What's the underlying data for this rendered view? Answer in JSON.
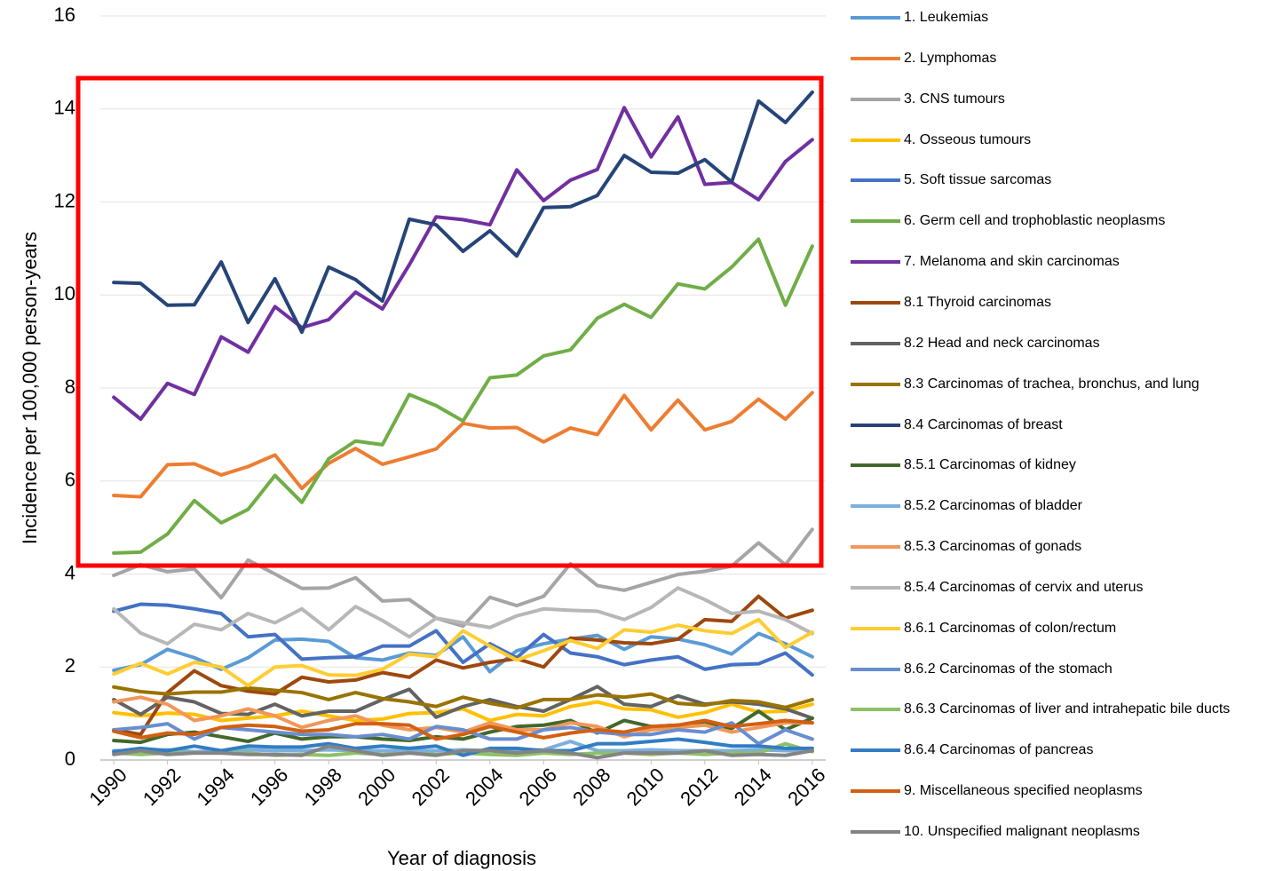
{
  "chart_data": {
    "type": "line",
    "x_label": "Year of diagnosis",
    "y_label": "Incidence per 100,000 person-years",
    "x": [
      1990,
      1991,
      1992,
      1993,
      1994,
      1995,
      1996,
      1997,
      1998,
      1999,
      2000,
      2001,
      2002,
      2003,
      2004,
      2005,
      2006,
      2007,
      2008,
      2009,
      2010,
      2011,
      2012,
      2013,
      2014,
      2015,
      2016
    ],
    "xlim": [
      1989.5,
      2016.5
    ],
    "xticks": [
      1990,
      1992,
      1994,
      1996,
      1998,
      2000,
      2002,
      2004,
      2006,
      2008,
      2010,
      2012,
      2014,
      2016
    ],
    "ylim": [
      0,
      16
    ],
    "yticks": [
      0,
      2,
      4,
      6,
      8,
      10,
      12,
      14,
      16
    ],
    "grid": true,
    "legend": "right",
    "series": [
      {
        "name": "1. Leukemias",
        "color": "#5b9bd5",
        "values": [
          1.93,
          2.05,
          2.38,
          2.2,
          1.95,
          2.2,
          2.58,
          2.6,
          2.55,
          2.2,
          2.15,
          2.3,
          2.25,
          2.65,
          1.9,
          2.35,
          2.5,
          2.6,
          2.68,
          2.38,
          2.65,
          2.6,
          2.48,
          2.28,
          2.72,
          2.5,
          2.22
        ]
      },
      {
        "name": "2. Lymphomas",
        "color": "#ed7d31",
        "values": [
          5.69,
          5.66,
          6.35,
          6.37,
          6.13,
          6.31,
          6.56,
          5.84,
          6.38,
          6.7,
          6.36,
          6.52,
          6.69,
          7.24,
          7.14,
          7.15,
          6.84,
          7.14,
          7.0,
          7.84,
          7.1,
          7.74,
          7.1,
          7.28,
          7.76,
          7.33,
          7.9
        ]
      },
      {
        "name": "3. CNS tumours",
        "color": "#a5a5a5",
        "values": [
          3.97,
          4.2,
          4.05,
          4.11,
          3.49,
          4.3,
          4.0,
          3.69,
          3.7,
          3.92,
          3.42,
          3.45,
          3.05,
          2.88,
          3.5,
          3.32,
          3.52,
          4.22,
          3.75,
          3.65,
          3.82,
          3.99,
          4.06,
          4.17,
          4.67,
          4.2,
          4.96
        ]
      },
      {
        "name": "4. Osseous tumours",
        "color": "#ffc000",
        "values": [
          1.02,
          0.95,
          1.01,
          0.98,
          0.85,
          0.9,
          0.95,
          1.05,
          0.95,
          0.85,
          0.88,
          1.0,
          1.02,
          1.1,
          0.85,
          0.98,
          0.95,
          1.15,
          1.25,
          1.1,
          1.08,
          0.92,
          1.02,
          1.2,
          1.03,
          1.05,
          1.2
        ]
      },
      {
        "name": "5. Soft tissue sarcomas",
        "color": "#4472c4",
        "values": [
          3.2,
          3.35,
          3.33,
          3.25,
          3.15,
          2.65,
          2.7,
          2.17,
          2.2,
          2.22,
          2.45,
          2.45,
          2.78,
          2.1,
          2.5,
          2.2,
          2.7,
          2.3,
          2.22,
          2.05,
          2.15,
          2.22,
          1.95,
          2.05,
          2.07,
          2.3,
          1.83
        ]
      },
      {
        "name": "6. Germ cell and trophoblastic neoplasms",
        "color": "#70ad47",
        "values": [
          4.45,
          4.47,
          4.86,
          5.58,
          5.1,
          5.39,
          6.12,
          5.54,
          6.48,
          6.86,
          6.78,
          7.86,
          7.62,
          7.29,
          8.22,
          8.28,
          8.69,
          8.82,
          9.5,
          9.8,
          9.52,
          10.24,
          10.13,
          10.6,
          11.2,
          9.78,
          11.05
        ]
      },
      {
        "name": "7. Melanoma and skin carcinomas",
        "color": "#7030a0",
        "values": [
          7.8,
          7.33,
          8.1,
          7.86,
          9.1,
          8.77,
          9.75,
          9.3,
          9.47,
          10.06,
          9.7,
          10.65,
          11.68,
          11.62,
          11.51,
          12.69,
          12.03,
          12.47,
          12.7,
          14.03,
          12.97,
          13.83,
          12.38,
          12.42,
          12.05,
          12.87,
          13.34
        ]
      },
      {
        "name": "8.1 Thyroid carcinomas",
        "color": "#9e480e",
        "values": [
          0.65,
          0.55,
          1.45,
          1.92,
          1.6,
          1.48,
          1.42,
          1.78,
          1.68,
          1.72,
          1.88,
          1.78,
          2.15,
          1.98,
          2.1,
          2.18,
          2.0,
          2.62,
          2.58,
          2.52,
          2.5,
          2.6,
          3.02,
          2.98,
          3.52,
          3.05,
          3.22
        ]
      },
      {
        "name": "8.2 Head and neck carcinomas",
        "color": "#636363",
        "values": [
          1.3,
          0.98,
          1.35,
          1.25,
          1.0,
          0.98,
          1.2,
          0.95,
          1.05,
          1.05,
          1.3,
          1.52,
          0.92,
          1.15,
          1.3,
          1.15,
          1.05,
          1.3,
          1.58,
          1.2,
          1.15,
          1.38,
          1.2,
          1.25,
          1.2,
          1.1,
          0.9
        ]
      },
      {
        "name": "8.3 Carcinomas of trachea, bronchus, and lung",
        "color": "#997300",
        "values": [
          1.57,
          1.47,
          1.42,
          1.46,
          1.46,
          1.55,
          1.5,
          1.45,
          1.3,
          1.45,
          1.32,
          1.25,
          1.15,
          1.35,
          1.22,
          1.12,
          1.3,
          1.3,
          1.4,
          1.35,
          1.42,
          1.22,
          1.18,
          1.28,
          1.25,
          1.13,
          1.3
        ]
      },
      {
        "name": "8.4 Carcinomas of breast",
        "color": "#264478",
        "values": [
          10.27,
          10.25,
          9.78,
          9.79,
          10.71,
          9.41,
          10.35,
          9.2,
          10.6,
          10.33,
          9.87,
          11.63,
          11.51,
          10.94,
          11.38,
          10.84,
          11.88,
          11.9,
          12.14,
          13.0,
          12.64,
          12.62,
          12.91,
          12.43,
          14.17,
          13.71,
          14.36
        ]
      },
      {
        "name": "8.5.1 Carcinomas of kidney",
        "color": "#43682b",
        "values": [
          0.42,
          0.38,
          0.55,
          0.6,
          0.5,
          0.4,
          0.58,
          0.45,
          0.5,
          0.5,
          0.45,
          0.42,
          0.5,
          0.45,
          0.6,
          0.72,
          0.75,
          0.85,
          0.58,
          0.85,
          0.72,
          0.75,
          0.8,
          0.68,
          1.05,
          0.65,
          0.9
        ]
      },
      {
        "name": "8.5.2 Carcinomas of bladder",
        "color": "#7cafdd",
        "values": [
          0.2,
          0.2,
          0.22,
          0.18,
          0.2,
          0.22,
          0.2,
          0.2,
          0.22,
          0.2,
          0.2,
          0.2,
          0.2,
          0.22,
          0.2,
          0.2,
          0.22,
          0.4,
          0.2,
          0.2,
          0.22,
          0.2,
          0.2,
          0.2,
          0.22,
          0.2,
          0.2
        ]
      },
      {
        "name": "8.5.3 Carcinomas of gonads",
        "color": "#f1975a",
        "values": [
          1.25,
          1.35,
          1.2,
          0.85,
          0.95,
          1.1,
          0.95,
          0.7,
          0.85,
          0.95,
          0.75,
          0.65,
          0.7,
          0.6,
          0.8,
          0.65,
          0.65,
          0.8,
          0.72,
          0.5,
          0.65,
          0.7,
          0.75,
          0.6,
          0.7,
          0.8,
          0.8
        ]
      },
      {
        "name": "8.5.4 Carcinomas of cervix and uterus",
        "color": "#b7b7b7",
        "values": [
          3.25,
          2.73,
          2.5,
          2.92,
          2.8,
          3.15,
          2.95,
          3.25,
          2.8,
          3.3,
          3.0,
          2.65,
          3.05,
          2.95,
          2.85,
          3.1,
          3.25,
          3.22,
          3.2,
          3.02,
          3.28,
          3.7,
          3.45,
          3.15,
          3.2,
          3.02,
          2.72
        ]
      },
      {
        "name": "8.6.1 Carcinomas of colon/rectum",
        "color": "#ffcd33",
        "values": [
          1.85,
          2.08,
          1.85,
          2.1,
          2.0,
          1.6,
          2.0,
          2.03,
          1.83,
          1.82,
          1.95,
          2.28,
          2.22,
          2.78,
          2.45,
          2.15,
          2.35,
          2.57,
          2.4,
          2.8,
          2.75,
          2.9,
          2.78,
          2.72,
          3.02,
          2.42,
          2.75
        ]
      },
      {
        "name": "8.6.2 Carcinomas of the stomach",
        "color": "#698ed0",
        "values": [
          0.65,
          0.7,
          0.78,
          0.45,
          0.7,
          0.65,
          0.6,
          0.55,
          0.55,
          0.5,
          0.55,
          0.45,
          0.72,
          0.65,
          0.45,
          0.45,
          0.65,
          0.7,
          0.6,
          0.55,
          0.55,
          0.65,
          0.6,
          0.8,
          0.35,
          0.65,
          0.45
        ]
      },
      {
        "name": "8.6.3 Carcinomas of liver and intrahepatic bile ducts",
        "color": "#8cc168",
        "values": [
          0.15,
          0.12,
          0.15,
          0.15,
          0.15,
          0.15,
          0.1,
          0.12,
          0.1,
          0.15,
          0.12,
          0.15,
          0.12,
          0.15,
          0.12,
          0.1,
          0.15,
          0.12,
          0.15,
          0.15,
          0.12,
          0.15,
          0.12,
          0.15,
          0.15,
          0.35,
          0.18
        ]
      },
      {
        "name": "8.6.4 Carcinomas of pancreas",
        "color": "#327dc2",
        "values": [
          0.18,
          0.25,
          0.2,
          0.3,
          0.2,
          0.3,
          0.28,
          0.28,
          0.35,
          0.25,
          0.3,
          0.25,
          0.3,
          0.1,
          0.25,
          0.25,
          0.2,
          0.2,
          0.35,
          0.35,
          0.4,
          0.45,
          0.38,
          0.3,
          0.3,
          0.25,
          0.25
        ]
      },
      {
        "name": "9. Miscellaneous specified neoplasms",
        "color": "#d26012",
        "values": [
          0.62,
          0.48,
          0.58,
          0.55,
          0.7,
          0.75,
          0.72,
          0.62,
          0.65,
          0.78,
          0.78,
          0.75,
          0.45,
          0.55,
          0.72,
          0.6,
          0.48,
          0.58,
          0.65,
          0.6,
          0.72,
          0.75,
          0.85,
          0.72,
          0.78,
          0.85,
          0.8
        ]
      },
      {
        "name": "10. Unspecified malignant neoplasms",
        "color": "#848484",
        "values": [
          0.12,
          0.2,
          0.12,
          0.15,
          0.15,
          0.12,
          0.12,
          0.1,
          0.3,
          0.2,
          0.1,
          0.15,
          0.1,
          0.2,
          0.2,
          0.15,
          0.2,
          0.15,
          0.05,
          0.15,
          0.15,
          0.15,
          0.2,
          0.1,
          0.12,
          0.1,
          0.2
        ]
      }
    ]
  }
}
